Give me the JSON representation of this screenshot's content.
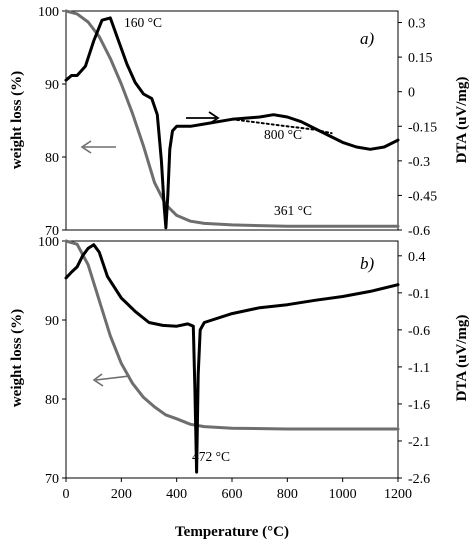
{
  "chart_data": [
    {
      "type": "line",
      "panel_label": "a)",
      "xlim": [
        0,
        1200
      ],
      "ylim_left": [
        70,
        100
      ],
      "ylim_right": [
        -0.6,
        0.35
      ],
      "y_ticks_left": [
        "100",
        "90",
        "80",
        "70"
      ],
      "y_ticks_right": [
        "0.3",
        "0.15",
        "0",
        "-0.15",
        "-0.3",
        "-0.45",
        "-0.6"
      ],
      "ylabel_left": "weight loss (%)",
      "ylabel_right": "DTA (uV/mg)",
      "annotations": [
        "160 °C",
        "361 °C",
        "800 °C"
      ],
      "colors": {
        "weight": "#6e6e6e",
        "dta": "#000000"
      },
      "series": [
        {
          "axis": "left",
          "x": [
            0,
            40,
            80,
            120,
            160,
            200,
            240,
            280,
            320,
            360,
            400,
            450,
            500,
            600,
            800,
            1000,
            1200
          ],
          "y": [
            100,
            99.6,
            98.5,
            96.5,
            93.5,
            90,
            86,
            81.5,
            76.5,
            73.5,
            72,
            71.2,
            70.9,
            70.7,
            70.5,
            70.5,
            70.5
          ]
        },
        {
          "axis": "right",
          "x": [
            0,
            20,
            40,
            70,
            100,
            130,
            160,
            190,
            220,
            250,
            280,
            310,
            330,
            345,
            355,
            361,
            368,
            375,
            385,
            400,
            450,
            500,
            600,
            700,
            750,
            800,
            850,
            900,
            950,
            1000,
            1050,
            1100,
            1150,
            1200
          ],
          "y": [
            0.05,
            0.07,
            0.07,
            0.11,
            0.22,
            0.31,
            0.32,
            0.22,
            0.12,
            0.04,
            -0.01,
            -0.03,
            -0.1,
            -0.3,
            -0.5,
            -0.59,
            -0.45,
            -0.25,
            -0.17,
            -0.15,
            -0.15,
            -0.14,
            -0.12,
            -0.11,
            -0.1,
            -0.11,
            -0.13,
            -0.16,
            -0.19,
            -0.22,
            -0.24,
            -0.25,
            -0.24,
            -0.21
          ]
        },
        {
          "axis": "right",
          "style": "dotted",
          "x": [
            600,
            700,
            800,
            900,
            960
          ],
          "y": [
            -0.12,
            -0.135,
            -0.15,
            -0.165,
            -0.18
          ]
        }
      ]
    },
    {
      "type": "line",
      "panel_label": "b)",
      "xlim": [
        0,
        1200
      ],
      "ylim_left": [
        70,
        100
      ],
      "ylim_right": [
        -2.6,
        0.6
      ],
      "y_ticks_left": [
        "100",
        "90",
        "80",
        "70"
      ],
      "y_ticks_right": [
        "0.4",
        "-0.1",
        "-0.6",
        "-1.1",
        "-1.6",
        "-2.1",
        "-2.6"
      ],
      "x_ticks": [
        "0",
        "200",
        "400",
        "600",
        "800",
        "1000",
        "1200"
      ],
      "ylabel_left": "weight loss (%)",
      "ylabel_right": "DTA (uV/mg)",
      "xlabel": "Temperature (°C)",
      "annotations": [
        "472 °C"
      ],
      "colors": {
        "weight": "#6e6e6e",
        "dta": "#000000"
      },
      "series": [
        {
          "axis": "left",
          "x": [
            0,
            40,
            80,
            120,
            160,
            200,
            240,
            280,
            320,
            360,
            400,
            450,
            500,
            600,
            800,
            1000,
            1200
          ],
          "y": [
            100,
            99.6,
            97,
            92.5,
            88,
            84.5,
            82,
            80.2,
            79,
            78,
            77.5,
            76.8,
            76.5,
            76.3,
            76.2,
            76.2,
            76.2
          ]
        },
        {
          "axis": "right",
          "x": [
            0,
            20,
            40,
            60,
            80,
            100,
            120,
            150,
            200,
            250,
            300,
            350,
            400,
            440,
            460,
            466,
            472,
            478,
            485,
            500,
            600,
            700,
            800,
            900,
            1000,
            1100,
            1200
          ],
          "y": [
            0.1,
            0.18,
            0.25,
            0.4,
            0.5,
            0.55,
            0.45,
            0.12,
            -0.17,
            -0.35,
            -0.5,
            -0.54,
            -0.55,
            -0.52,
            -0.55,
            -1.4,
            -2.52,
            -1.2,
            -0.6,
            -0.5,
            -0.38,
            -0.3,
            -0.26,
            -0.2,
            -0.15,
            -0.08,
            0.01
          ]
        }
      ]
    }
  ]
}
